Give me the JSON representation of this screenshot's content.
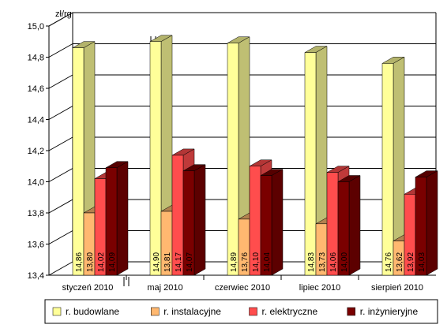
{
  "chart_data": {
    "type": "bar",
    "title": "",
    "xlabel": "",
    "ylabel": "zł/rg",
    "ylim": [
      13.4,
      15.0
    ],
    "yticks": [
      "13,4",
      "13,6",
      "13,8",
      "14,0",
      "14,2",
      "14,4",
      "14,6",
      "14,8",
      "15,0"
    ],
    "grid": true,
    "legend_position": "bottom",
    "categories": [
      "styczeń 2010",
      "maj 2010",
      "czerwiec 2010",
      "lipiec 2010",
      "sierpień 2010"
    ],
    "series": [
      {
        "name": "r. budowlane",
        "color": "#ffff99",
        "values": [
          14.86,
          14.9,
          14.89,
          14.83,
          14.76
        ],
        "labels": [
          "14,86",
          "14,90",
          "14,89",
          "14,83",
          "14,76"
        ]
      },
      {
        "name": "r. instalacyjne",
        "color": "#ffb870",
        "values": [
          13.8,
          13.81,
          13.76,
          13.73,
          13.62
        ],
        "labels": [
          "13,80",
          "13,81",
          "13,76",
          "13,73",
          "13,62"
        ]
      },
      {
        "name": "r. elektryczne",
        "color": "#ff4d4d",
        "values": [
          14.02,
          14.17,
          14.1,
          14.06,
          13.92
        ],
        "labels": [
          "14,02",
          "14,17",
          "14,10",
          "14,06",
          "13,92"
        ]
      },
      {
        "name": "r. inżynieryjne",
        "color": "#7a0000",
        "values": [
          14.09,
          14.07,
          14.04,
          14.0,
          14.03
        ],
        "labels": [
          "14,09",
          "14,07",
          "14,04",
          "14,00",
          "14,03"
        ]
      }
    ]
  }
}
